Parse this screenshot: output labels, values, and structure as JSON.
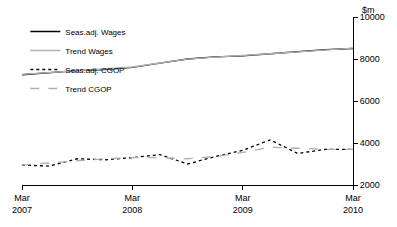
{
  "chart_data": {
    "type": "line",
    "ylabel": "$m",
    "categories": [
      "Mar 2007",
      null,
      null,
      null,
      "Mar 2008",
      null,
      null,
      null,
      "Mar 2009",
      null,
      null,
      null,
      "Mar 2010"
    ],
    "series": [
      {
        "name": "Seas.adj. Wages",
        "color": "#000000",
        "line_style": "solid",
        "values": [
          7250,
          7350,
          7450,
          7500,
          7600,
          7800,
          8000,
          8100,
          8150,
          8250,
          8350,
          8450,
          8500
        ]
      },
      {
        "name": "Trend Wages",
        "color": "#b0b0b0",
        "line_style": "solid",
        "values": [
          7270,
          7360,
          7440,
          7520,
          7620,
          7810,
          7990,
          8090,
          8160,
          8250,
          8340,
          8440,
          8520
        ]
      },
      {
        "name": "Seas.adj. CGOP",
        "color": "#000000",
        "line_style": "dot",
        "values": [
          2950,
          2900,
          3250,
          3200,
          3300,
          3450,
          3000,
          3350,
          3650,
          4150,
          3500,
          3700,
          3700
        ]
      },
      {
        "name": "Trend CGOP",
        "color": "#b0b0b0",
        "line_style": "dash",
        "values": [
          2950,
          3050,
          3150,
          3250,
          3300,
          3300,
          3250,
          3350,
          3550,
          3800,
          3750,
          3700,
          3700
        ]
      }
    ],
    "ylim": [
      2000,
      10000
    ],
    "yticks": [
      2000,
      4000,
      6000,
      8000,
      10000
    ],
    "grid": false,
    "legend": "top left"
  }
}
